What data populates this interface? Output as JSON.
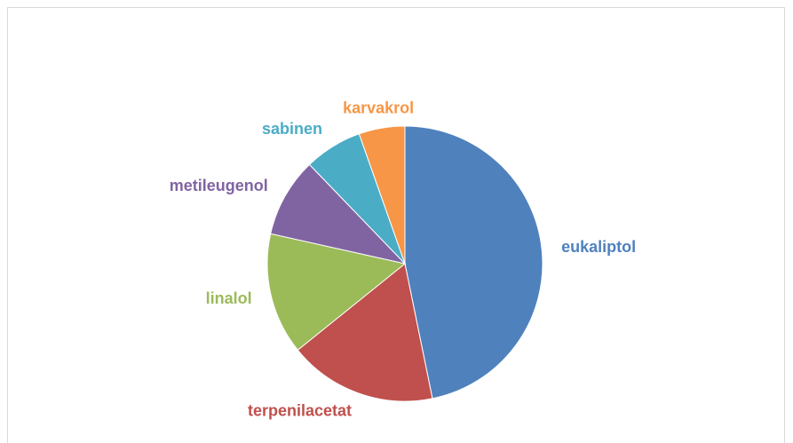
{
  "chart_data": {
    "type": "pie",
    "categories": [
      "eukaliptol",
      "terpenilacetat",
      "linalol",
      "metileugenol",
      "sabinen",
      "karvakrol"
    ],
    "values": [
      46.8,
      17.4,
      14.3,
      9.3,
      6.8,
      5.4
    ],
    "colors": [
      "#4f81bd",
      "#c0504d",
      "#9bbb59",
      "#8064a2",
      "#4bacc6",
      "#f79646"
    ]
  }
}
